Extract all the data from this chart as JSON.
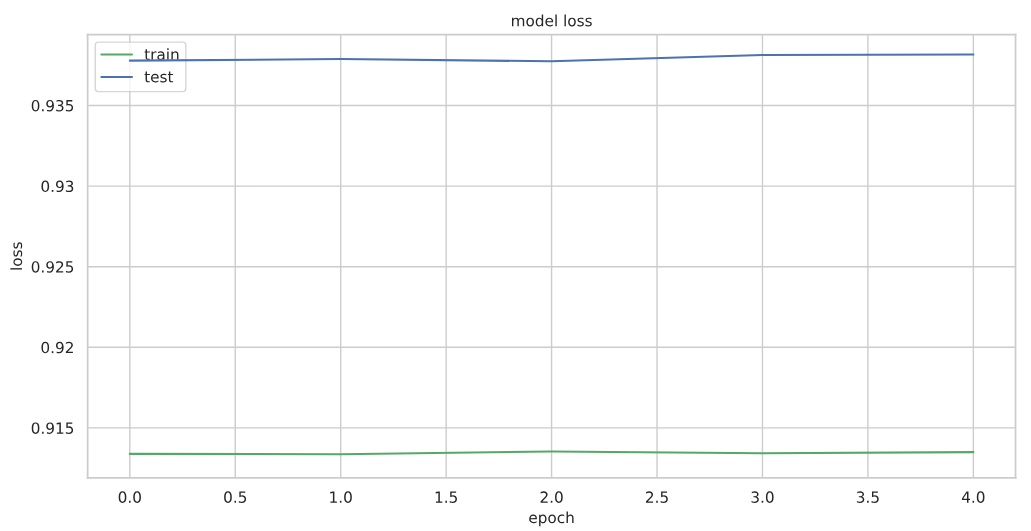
{
  "chart_data": {
    "type": "line",
    "title": "model loss",
    "xlabel": "epoch",
    "ylabel": "loss",
    "x": [
      0,
      1,
      2,
      3,
      4
    ],
    "series": [
      {
        "name": "train",
        "color": "#55a868",
        "values": [
          0.91339,
          0.91337,
          0.91354,
          0.91343,
          0.9135
        ]
      },
      {
        "name": "test",
        "color": "#4c72b0",
        "values": [
          0.93778,
          0.93788,
          0.93774,
          0.93813,
          0.93816
        ]
      }
    ],
    "xlim": [
      -0.2,
      4.2
    ],
    "xticks": [
      {
        "value": 0,
        "label": "0.0"
      },
      {
        "value": 0.5,
        "label": "0.5"
      },
      {
        "value": 1,
        "label": "1.0"
      },
      {
        "value": 1.5,
        "label": "1.5"
      },
      {
        "value": 2,
        "label": "2.0"
      },
      {
        "value": 2.5,
        "label": "2.5"
      },
      {
        "value": 3,
        "label": "3.0"
      },
      {
        "value": 3.5,
        "label": "3.5"
      },
      {
        "value": 4,
        "label": "4.0"
      }
    ],
    "ylim": [
      0.9119,
      0.9394
    ],
    "yticks": [
      0.915,
      0.92,
      0.925,
      0.93,
      0.935
    ],
    "grid": true,
    "legend": "top left",
    "marker": "none",
    "line_style": "solid"
  }
}
